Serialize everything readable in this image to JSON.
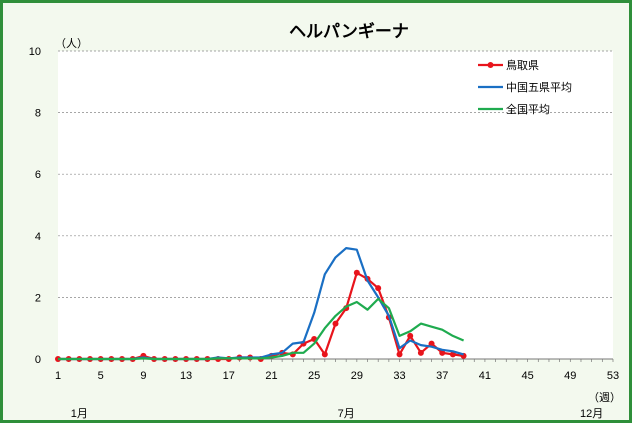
{
  "chart_data": {
    "type": "line",
    "title": "ヘルパンギーナ",
    "ylabel": "（人）",
    "xlabel": "（週）",
    "ylim": [
      0,
      10
    ],
    "yticks": [
      0,
      2,
      4,
      6,
      8,
      10
    ],
    "xlim": [
      1,
      53
    ],
    "xticks": [
      1,
      5,
      9,
      13,
      17,
      21,
      25,
      29,
      33,
      37,
      41,
      45,
      49,
      53
    ],
    "month_labels": [
      {
        "label": "1月",
        "week": 3
      },
      {
        "label": "7月",
        "week": 28
      },
      {
        "label": "12月",
        "week": 51
      }
    ],
    "grid": true,
    "legend_position": "top-right",
    "series": [
      {
        "name": "鳥取県",
        "color": "#e8141c",
        "markers": true,
        "x": [
          1,
          2,
          3,
          4,
          5,
          6,
          7,
          8,
          9,
          10,
          11,
          12,
          13,
          14,
          15,
          16,
          17,
          18,
          19,
          20,
          21,
          22,
          23,
          24,
          25,
          26,
          27,
          28,
          29,
          30,
          31,
          32,
          33,
          34,
          35,
          36,
          37,
          38,
          39
        ],
        "values": [
          0,
          0,
          0,
          0,
          0,
          0,
          0,
          0,
          0.1,
          0,
          0,
          0,
          0,
          0,
          0,
          0,
          0,
          0.05,
          0.05,
          0,
          0.1,
          0.2,
          0.15,
          0.5,
          0.65,
          0.15,
          1.15,
          1.65,
          2.8,
          2.6,
          2.3,
          1.35,
          0.15,
          0.75,
          0.2,
          0.5,
          0.2,
          0.15,
          0.1
        ]
      },
      {
        "name": "中国五県平均",
        "color": "#1a6fc4",
        "markers": false,
        "x": [
          1,
          2,
          3,
          4,
          5,
          6,
          7,
          8,
          9,
          10,
          11,
          12,
          13,
          14,
          15,
          16,
          17,
          18,
          19,
          20,
          21,
          22,
          23,
          24,
          25,
          26,
          27,
          28,
          29,
          30,
          31,
          32,
          33,
          34,
          35,
          36,
          37,
          38,
          39
        ],
        "values": [
          0,
          0,
          0,
          0,
          0,
          0,
          0,
          0,
          0.05,
          0,
          0,
          0,
          0,
          0,
          0,
          0.05,
          0.02,
          0.05,
          0.05,
          0.05,
          0.15,
          0.2,
          0.5,
          0.55,
          1.5,
          2.75,
          3.3,
          3.6,
          3.55,
          2.55,
          2.0,
          1.4,
          0.35,
          0.6,
          0.45,
          0.4,
          0.3,
          0.25,
          0.15
        ]
      },
      {
        "name": "全国平均",
        "color": "#1fab4f",
        "markers": false,
        "x": [
          1,
          2,
          3,
          4,
          5,
          6,
          7,
          8,
          9,
          10,
          11,
          12,
          13,
          14,
          15,
          16,
          17,
          18,
          19,
          20,
          21,
          22,
          23,
          24,
          25,
          26,
          27,
          28,
          29,
          30,
          31,
          32,
          33,
          34,
          35,
          36,
          37,
          38,
          39
        ],
        "values": [
          0,
          0,
          0,
          0,
          0,
          0,
          0,
          0,
          0.02,
          0,
          0,
          0,
          0,
          0,
          0,
          0.02,
          0.02,
          0.02,
          0.02,
          0.02,
          0.05,
          0.1,
          0.2,
          0.2,
          0.5,
          1.0,
          1.4,
          1.7,
          1.85,
          1.6,
          1.95,
          1.65,
          0.75,
          0.9,
          1.15,
          1.05,
          0.95,
          0.75,
          0.6
        ]
      }
    ]
  }
}
